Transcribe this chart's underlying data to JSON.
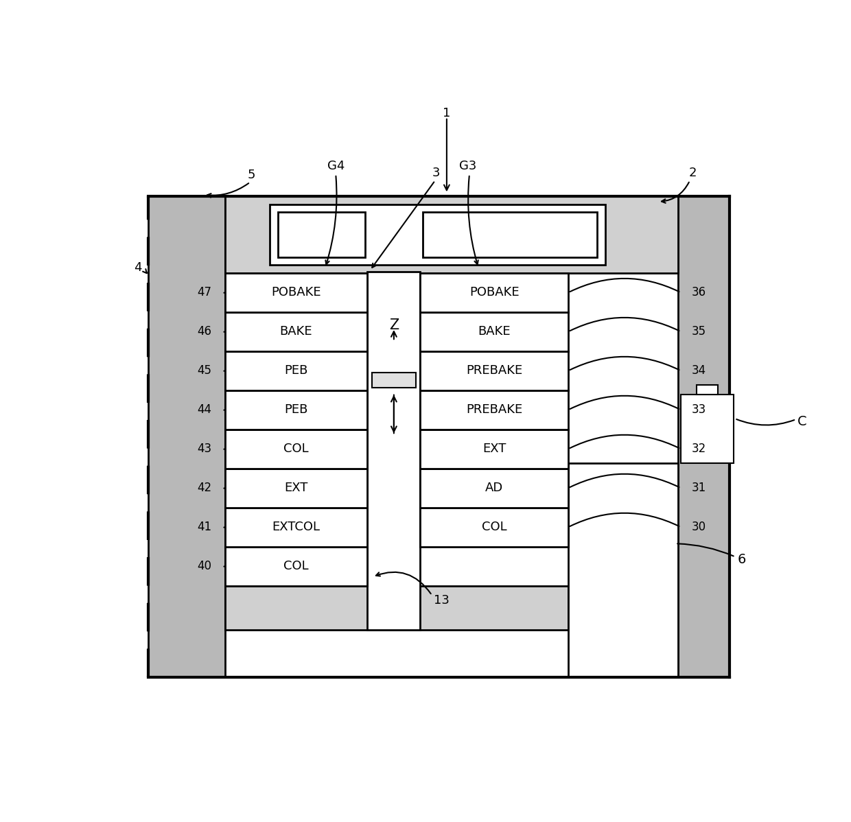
{
  "bg_color": "#ffffff",
  "figsize": [
    12.4,
    11.98
  ],
  "dpi": 100,
  "left_labels": [
    "COL",
    "EXTCOL",
    "EXT",
    "COL",
    "PEB",
    "PEB",
    "BAKE",
    "POBAKE"
  ],
  "left_numbers": [
    "40",
    "41",
    "42",
    "43",
    "44",
    "45",
    "46",
    "47"
  ],
  "right_labels": [
    "COL",
    "AD",
    "EXT",
    "PREBAKE",
    "PREBAKE",
    "BAKE",
    "POBAKE"
  ],
  "right_numbers": [
    "30",
    "31",
    "32",
    "33",
    "34",
    "35",
    "36"
  ],
  "cell_font_size": 13,
  "num_font_size": 12,
  "label_font_size": 13
}
